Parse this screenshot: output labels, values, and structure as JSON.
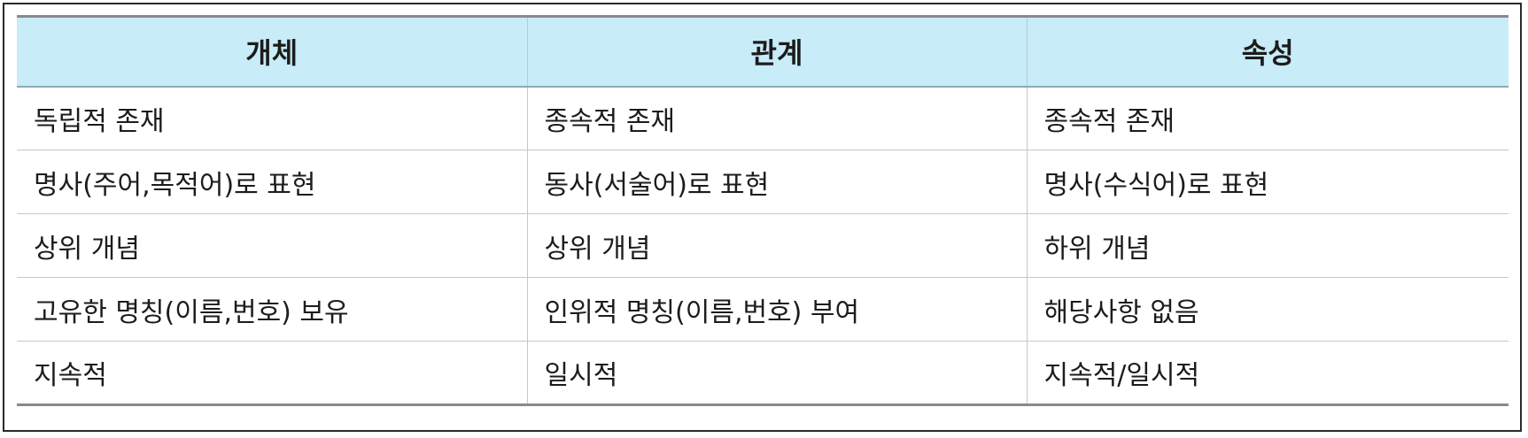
{
  "table": {
    "headers": [
      "개체",
      "관계",
      "속성"
    ],
    "rows": [
      [
        "독립적 존재",
        "종속적 존재",
        "종속적 존재"
      ],
      [
        "명사(주어,목적어)로 표현",
        "동사(서술어)로 표현",
        "명사(수식어)로 표현"
      ],
      [
        "상위 개념",
        "상위 개념",
        "하위 개념"
      ],
      [
        "고유한 명칭(이름,번호) 보유",
        "인위적 명칭(이름,번호) 부여",
        "해당사항 없음"
      ],
      [
        "지속적",
        "일시적",
        "지속적/일시적"
      ]
    ]
  },
  "colors": {
    "header_background": "#c8ecf8",
    "border": "#8a8a8a",
    "text": "#1c1c1c"
  }
}
